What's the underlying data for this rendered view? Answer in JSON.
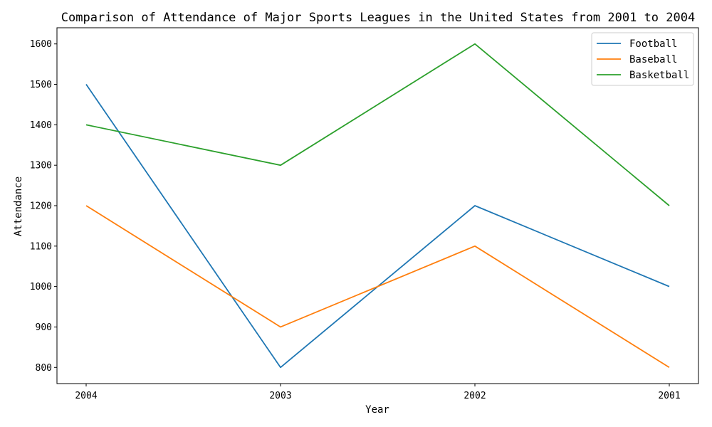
{
  "chart_data": {
    "type": "line",
    "title": "Comparison of Attendance of Major Sports Leagues in the United States from 2001 to 2004",
    "xlabel": "Year",
    "ylabel": "Attendance",
    "categories": [
      "2004",
      "2003",
      "2002",
      "2001"
    ],
    "yticks": [
      800,
      900,
      1000,
      1100,
      1200,
      1300,
      1400,
      1500,
      1600
    ],
    "ylim": [
      760,
      1640
    ],
    "grid": false,
    "legend_position": "top-right",
    "series": [
      {
        "name": "Football",
        "values": [
          1500,
          800,
          1200,
          1000
        ],
        "color": "#1f77b4"
      },
      {
        "name": "Baseball",
        "values": [
          1200,
          900,
          1100,
          800
        ],
        "color": "#ff7f0e"
      },
      {
        "name": "Basketball",
        "values": [
          1400,
          1300,
          1600,
          1200
        ],
        "color": "#2ca02c"
      }
    ]
  }
}
